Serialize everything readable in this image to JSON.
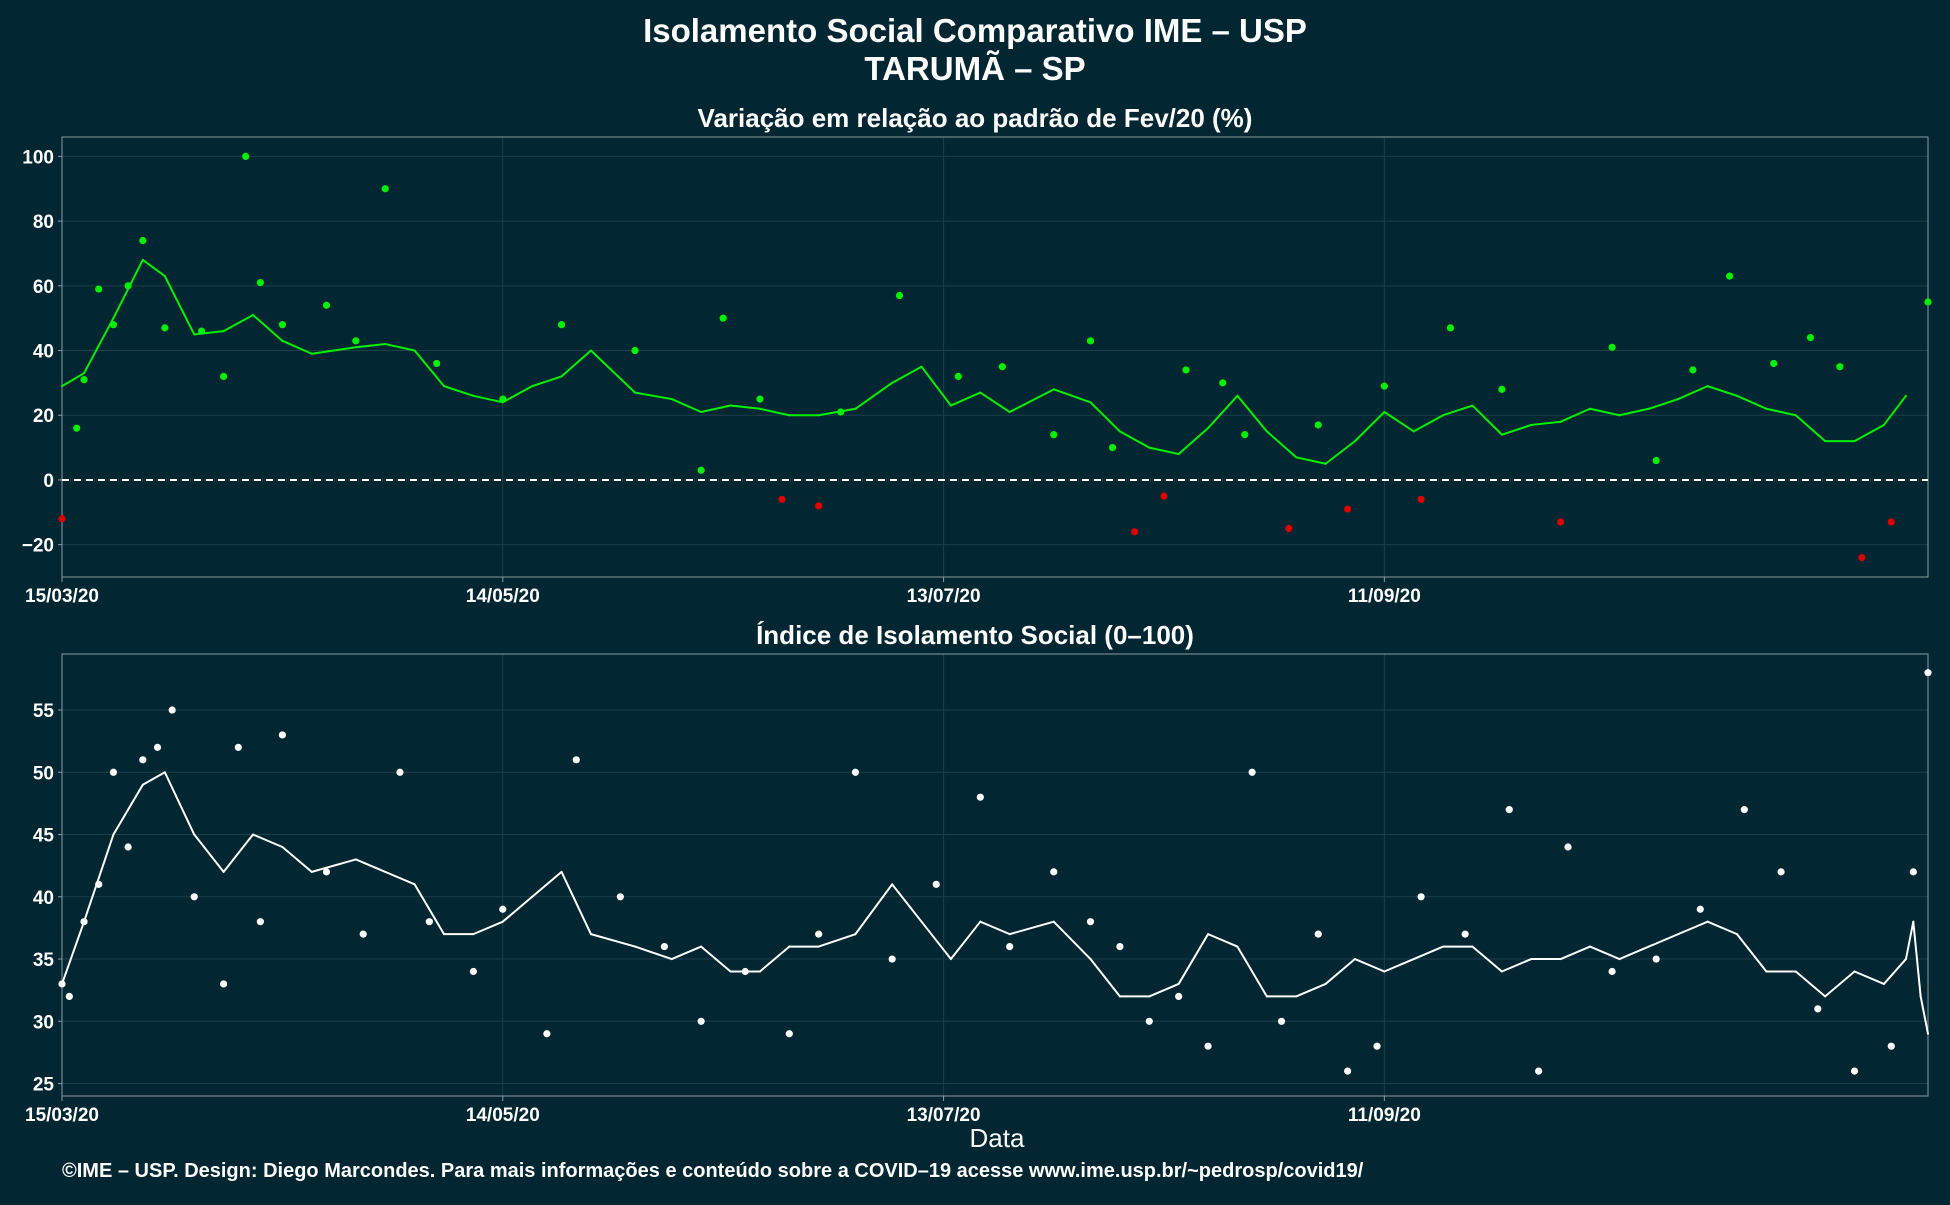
{
  "page": {
    "title": "Isolamento Social Comparativo IME – USP",
    "subtitle": "TARUMÃ – SP",
    "xlabel": "Data",
    "caption": "©IME – USP. Design: Diego Marcondes. Para mais informações e conteúdo sobre a COVID–19 acesse www.ime.usp.br/~pedrosp/covid19/"
  },
  "colors": {
    "background": "#022632",
    "positive": "#00f000",
    "negative": "#e00000",
    "index": "#ffffff",
    "grid": "#1c3f49",
    "axis_text": "#ffffff"
  },
  "chart_data": [
    {
      "type": "scatter",
      "title": "Variação em relação ao padrão de Fev/20 (%)",
      "xlabel": "",
      "ylabel": "",
      "x_start": "2020-03-15",
      "x_end": "2020-11-24",
      "xticks": [
        "15/03/20",
        "14/05/20",
        "13/07/20",
        "11/09/20"
      ],
      "yticks": [
        -20,
        0,
        20,
        40,
        60,
        80,
        100
      ],
      "ylim": [
        -30,
        106
      ],
      "reference_line_y": 0,
      "grid": true,
      "series": [
        {
          "kind": "points",
          "x": [
            "2020-03-15",
            "2020-03-17",
            "2020-03-18",
            "2020-03-20",
            "2020-03-22",
            "2020-03-24",
            "2020-03-26",
            "2020-03-29",
            "2020-04-03",
            "2020-04-06",
            "2020-04-09",
            "2020-04-11",
            "2020-04-14",
            "2020-04-20",
            "2020-04-24",
            "2020-04-28",
            "2020-05-05",
            "2020-05-14",
            "2020-05-22",
            "2020-06-01",
            "2020-06-10",
            "2020-06-13",
            "2020-06-18",
            "2020-06-21",
            "2020-06-26",
            "2020-06-29",
            "2020-07-07",
            "2020-07-15",
            "2020-07-21",
            "2020-07-28",
            "2020-08-02",
            "2020-08-05",
            "2020-08-08",
            "2020-08-12",
            "2020-08-15",
            "2020-08-20",
            "2020-08-23",
            "2020-08-29",
            "2020-09-02",
            "2020-09-06",
            "2020-09-11",
            "2020-09-16",
            "2020-09-20",
            "2020-09-27",
            "2020-10-05",
            "2020-10-12",
            "2020-10-18",
            "2020-10-23",
            "2020-10-28",
            "2020-11-03",
            "2020-11-08",
            "2020-11-12",
            "2020-11-15",
            "2020-11-19",
            "2020-11-24"
          ],
          "y": [
            -12,
            16,
            31,
            59,
            48,
            60,
            74,
            47,
            46,
            32,
            100,
            61,
            48,
            54,
            43,
            90,
            36,
            25,
            48,
            40,
            3,
            50,
            25,
            -6,
            -8,
            21,
            57,
            32,
            35,
            14,
            43,
            10,
            -16,
            -5,
            34,
            30,
            14,
            -15,
            17,
            -9,
            29,
            -6,
            47,
            28,
            -13,
            41,
            6,
            34,
            63,
            36,
            44,
            35,
            -24,
            -13,
            55
          ]
        },
        {
          "kind": "line",
          "x": [
            "2020-03-15",
            "2020-03-18",
            "2020-03-22",
            "2020-03-26",
            "2020-03-29",
            "2020-04-02",
            "2020-04-06",
            "2020-04-10",
            "2020-04-14",
            "2020-04-18",
            "2020-04-24",
            "2020-04-28",
            "2020-05-02",
            "2020-05-06",
            "2020-05-10",
            "2020-05-14",
            "2020-05-18",
            "2020-05-22",
            "2020-05-26",
            "2020-06-01",
            "2020-06-06",
            "2020-06-10",
            "2020-06-14",
            "2020-06-18",
            "2020-06-22",
            "2020-06-26",
            "2020-07-01",
            "2020-07-06",
            "2020-07-10",
            "2020-07-14",
            "2020-07-18",
            "2020-07-22",
            "2020-07-28",
            "2020-08-02",
            "2020-08-06",
            "2020-08-10",
            "2020-08-14",
            "2020-08-18",
            "2020-08-22",
            "2020-08-26",
            "2020-08-30",
            "2020-09-03",
            "2020-09-07",
            "2020-09-11",
            "2020-09-15",
            "2020-09-19",
            "2020-09-23",
            "2020-09-27",
            "2020-10-01",
            "2020-10-05",
            "2020-10-09",
            "2020-10-13",
            "2020-10-17",
            "2020-10-21",
            "2020-10-25",
            "2020-10-29",
            "2020-11-02",
            "2020-11-06",
            "2020-11-10",
            "2020-11-14",
            "2020-11-18",
            "2020-11-21"
          ],
          "y": [
            29,
            33,
            50,
            68,
            63,
            45,
            46,
            51,
            43,
            39,
            41,
            42,
            40,
            29,
            26,
            24,
            29,
            32,
            40,
            27,
            25,
            21,
            23,
            22,
            20,
            20,
            22,
            30,
            35,
            23,
            27,
            21,
            28,
            24,
            15,
            10,
            8,
            16,
            26,
            15,
            7,
            5,
            12,
            21,
            15,
            20,
            23,
            14,
            17,
            18,
            22,
            20,
            22,
            25,
            29,
            26,
            22,
            20,
            12,
            12,
            17,
            26
          ]
        }
      ]
    },
    {
      "type": "scatter",
      "title": "Índice de Isolamento Social (0–100)",
      "xlabel": "Data",
      "ylabel": "",
      "x_start": "2020-03-15",
      "x_end": "2020-11-24",
      "xticks": [
        "15/03/20",
        "14/05/20",
        "13/07/20",
        "11/09/20"
      ],
      "yticks": [
        25,
        30,
        35,
        40,
        45,
        50,
        55
      ],
      "ylim": [
        24,
        59.5
      ],
      "grid": true,
      "series": [
        {
          "kind": "points",
          "x": [
            "2020-03-15",
            "2020-03-16",
            "2020-03-18",
            "2020-03-20",
            "2020-03-22",
            "2020-03-24",
            "2020-03-26",
            "2020-03-28",
            "2020-03-30",
            "2020-04-02",
            "2020-04-06",
            "2020-04-08",
            "2020-04-11",
            "2020-04-14",
            "2020-04-20",
            "2020-04-25",
            "2020-04-30",
            "2020-05-04",
            "2020-05-10",
            "2020-05-14",
            "2020-05-20",
            "2020-05-24",
            "2020-05-30",
            "2020-06-05",
            "2020-06-10",
            "2020-06-16",
            "2020-06-22",
            "2020-06-26",
            "2020-07-01",
            "2020-07-06",
            "2020-07-12",
            "2020-07-18",
            "2020-07-22",
            "2020-07-28",
            "2020-08-02",
            "2020-08-06",
            "2020-08-10",
            "2020-08-14",
            "2020-08-18",
            "2020-08-24",
            "2020-08-28",
            "2020-09-02",
            "2020-09-06",
            "2020-09-10",
            "2020-09-16",
            "2020-09-22",
            "2020-09-28",
            "2020-10-02",
            "2020-10-06",
            "2020-10-12",
            "2020-10-18",
            "2020-10-24",
            "2020-10-30",
            "2020-11-04",
            "2020-11-09",
            "2020-11-14",
            "2020-11-19",
            "2020-11-22",
            "2020-11-24"
          ],
          "y": [
            33,
            32,
            38,
            41,
            50,
            44,
            51,
            52,
            55,
            40,
            33,
            52,
            38,
            53,
            42,
            37,
            50,
            38,
            34,
            39,
            29,
            51,
            40,
            36,
            30,
            34,
            29,
            37,
            50,
            35,
            41,
            48,
            36,
            42,
            38,
            36,
            30,
            32,
            28,
            50,
            30,
            37,
            26,
            28,
            40,
            37,
            47,
            26,
            44,
            34,
            35,
            39,
            47,
            42,
            31,
            26,
            28,
            42,
            58
          ]
        },
        {
          "kind": "line",
          "x": [
            "2020-03-15",
            "2020-03-18",
            "2020-03-22",
            "2020-03-26",
            "2020-03-29",
            "2020-04-02",
            "2020-04-06",
            "2020-04-10",
            "2020-04-14",
            "2020-04-18",
            "2020-04-24",
            "2020-04-28",
            "2020-05-02",
            "2020-05-06",
            "2020-05-10",
            "2020-05-14",
            "2020-05-18",
            "2020-05-22",
            "2020-05-26",
            "2020-06-01",
            "2020-06-06",
            "2020-06-10",
            "2020-06-14",
            "2020-06-18",
            "2020-06-22",
            "2020-06-26",
            "2020-07-01",
            "2020-07-06",
            "2020-07-10",
            "2020-07-14",
            "2020-07-18",
            "2020-07-22",
            "2020-07-28",
            "2020-08-02",
            "2020-08-06",
            "2020-08-10",
            "2020-08-14",
            "2020-08-18",
            "2020-08-22",
            "2020-08-26",
            "2020-08-30",
            "2020-09-03",
            "2020-09-07",
            "2020-09-11",
            "2020-09-15",
            "2020-09-19",
            "2020-09-23",
            "2020-09-27",
            "2020-10-01",
            "2020-10-05",
            "2020-10-09",
            "2020-10-13",
            "2020-10-17",
            "2020-10-21",
            "2020-10-25",
            "2020-10-29",
            "2020-11-02",
            "2020-11-06",
            "2020-11-10",
            "2020-11-14",
            "2020-11-18",
            "2020-11-21",
            "2020-11-22",
            "2020-11-23",
            "2020-11-24"
          ],
          "y": [
            33,
            38,
            45,
            49,
            50,
            45,
            42,
            45,
            44,
            42,
            43,
            42,
            41,
            37,
            37,
            38,
            40,
            42,
            37,
            36,
            35,
            36,
            34,
            34,
            36,
            36,
            37,
            41,
            38,
            35,
            38,
            37,
            38,
            35,
            32,
            32,
            33,
            37,
            36,
            32,
            32,
            33,
            35,
            34,
            35,
            36,
            36,
            34,
            35,
            35,
            36,
            35,
            36,
            37,
            38,
            37,
            34,
            34,
            32,
            34,
            33,
            35,
            38,
            32,
            29
          ]
        }
      ]
    }
  ]
}
